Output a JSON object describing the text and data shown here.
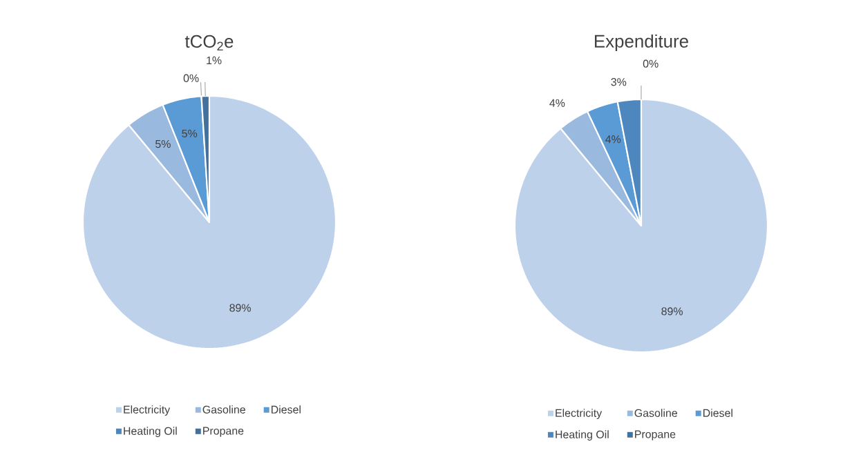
{
  "chart_data": [
    {
      "type": "pie",
      "title": "tCO$_{2}$e",
      "categories": [
        "Electricity",
        "Gasoline",
        "Diesel",
        "Heating Oil",
        "Propane"
      ],
      "values": [
        89,
        5,
        5,
        0,
        1
      ],
      "colors": [
        "#bdd1ea",
        "#9ab9df",
        "#5b9bd5",
        "#4e87bd",
        "#41719c"
      ],
      "value_labels": [
        "89%",
        "5%",
        "5%",
        "0%",
        "1%"
      ],
      "legend": "bottom"
    },
    {
      "type": "pie",
      "title": "Expenditure",
      "categories": [
        "Electricity",
        "Gasoline",
        "Diesel",
        "Heating Oil",
        "Propane"
      ],
      "values": [
        89,
        4,
        4,
        3,
        0
      ],
      "colors": [
        "#bdd1ea",
        "#9ab9df",
        "#5b9bd5",
        "#4e87bd",
        "#41719c"
      ],
      "value_labels": [
        "89%",
        "4%",
        "4%",
        "3%",
        "0%"
      ],
      "legend": "bottom"
    }
  ]
}
